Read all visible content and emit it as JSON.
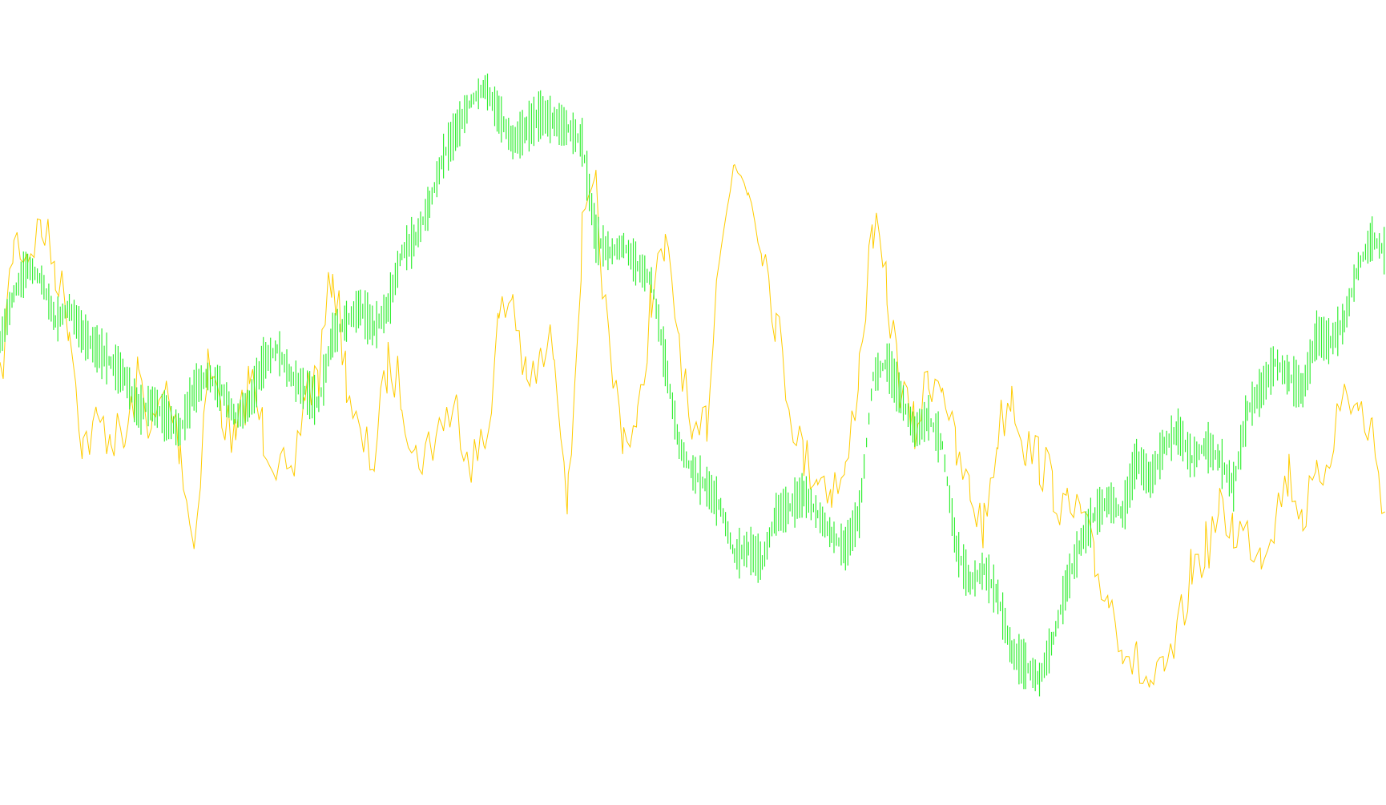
{
  "chart_data": {
    "type": "line",
    "title": "",
    "xlabel": "",
    "ylabel": "",
    "grid": false,
    "legend": "none",
    "axes_visible": false,
    "x_range": [
      0,
      1
    ],
    "y_range": [
      0,
      1
    ],
    "x": [
      0.0,
      0.01,
      0.02,
      0.03,
      0.04,
      0.05,
      0.06,
      0.07,
      0.08,
      0.09,
      0.1,
      0.11,
      0.12,
      0.13,
      0.14,
      0.15,
      0.16,
      0.17,
      0.18,
      0.19,
      0.2,
      0.21,
      0.22,
      0.23,
      0.24,
      0.25,
      0.26,
      0.27,
      0.28,
      0.29,
      0.3,
      0.31,
      0.32,
      0.33,
      0.34,
      0.35,
      0.36,
      0.37,
      0.38,
      0.39,
      0.4,
      0.41,
      0.42,
      0.43,
      0.44,
      0.45,
      0.46,
      0.47,
      0.48,
      0.49,
      0.5,
      0.51,
      0.52,
      0.53,
      0.54,
      0.55,
      0.56,
      0.57,
      0.58,
      0.59,
      0.6,
      0.61,
      0.62,
      0.63,
      0.64,
      0.65,
      0.66,
      0.67,
      0.68,
      0.69,
      0.7,
      0.71,
      0.72,
      0.73,
      0.74,
      0.75,
      0.76,
      0.77,
      0.78,
      0.79,
      0.8,
      0.81,
      0.82,
      0.83,
      0.84,
      0.85,
      0.86,
      0.87,
      0.88,
      0.89,
      0.9,
      0.91,
      0.92,
      0.93,
      0.94,
      0.95,
      0.96,
      0.97,
      0.98,
      0.99,
      1.0
    ],
    "series": [
      {
        "color": "#ffcc00",
        "style": "thin-line",
        "values": [
          0.48,
          0.7,
          0.68,
          0.72,
          0.66,
          0.58,
          0.4,
          0.43,
          0.42,
          0.4,
          0.5,
          0.42,
          0.48,
          0.4,
          0.25,
          0.52,
          0.45,
          0.4,
          0.5,
          0.42,
          0.38,
          0.33,
          0.48,
          0.5,
          0.66,
          0.5,
          0.4,
          0.38,
          0.52,
          0.48,
          0.38,
          0.4,
          0.44,
          0.45,
          0.38,
          0.4,
          0.58,
          0.62,
          0.48,
          0.52,
          0.55,
          0.32,
          0.7,
          0.76,
          0.52,
          0.42,
          0.42,
          0.62,
          0.68,
          0.56,
          0.38,
          0.44,
          0.72,
          0.8,
          0.78,
          0.7,
          0.58,
          0.46,
          0.38,
          0.36,
          0.34,
          0.35,
          0.52,
          0.72,
          0.62,
          0.48,
          0.42,
          0.5,
          0.5,
          0.38,
          0.33,
          0.28,
          0.42,
          0.48,
          0.4,
          0.38,
          0.34,
          0.3,
          0.3,
          0.22,
          0.18,
          0.12,
          0.08,
          0.05,
          0.06,
          0.12,
          0.22,
          0.25,
          0.3,
          0.28,
          0.27,
          0.25,
          0.3,
          0.36,
          0.3,
          0.34,
          0.4,
          0.48,
          0.45,
          0.42,
          0.3
        ]
      },
      {
        "color": "#33ee33",
        "style": "dense-bars",
        "values": [
          0.55,
          0.62,
          0.66,
          0.64,
          0.58,
          0.6,
          0.56,
          0.54,
          0.52,
          0.5,
          0.45,
          0.46,
          0.44,
          0.42,
          0.48,
          0.5,
          0.48,
          0.44,
          0.46,
          0.52,
          0.54,
          0.5,
          0.48,
          0.46,
          0.56,
          0.58,
          0.6,
          0.57,
          0.6,
          0.68,
          0.7,
          0.75,
          0.82,
          0.86,
          0.9,
          0.92,
          0.88,
          0.84,
          0.86,
          0.88,
          0.87,
          0.86,
          0.84,
          0.7,
          0.68,
          0.69,
          0.66,
          0.64,
          0.52,
          0.4,
          0.36,
          0.34,
          0.31,
          0.24,
          0.25,
          0.23,
          0.3,
          0.31,
          0.33,
          0.3,
          0.27,
          0.25,
          0.3,
          0.5,
          0.52,
          0.47,
          0.42,
          0.44,
          0.4,
          0.25,
          0.2,
          0.22,
          0.18,
          0.1,
          0.08,
          0.06,
          0.12,
          0.2,
          0.26,
          0.3,
          0.32,
          0.3,
          0.38,
          0.35,
          0.4,
          0.42,
          0.38,
          0.4,
          0.38,
          0.34,
          0.45,
          0.48,
          0.52,
          0.5,
          0.48,
          0.56,
          0.55,
          0.58,
          0.66,
          0.7,
          0.68
        ]
      }
    ]
  }
}
